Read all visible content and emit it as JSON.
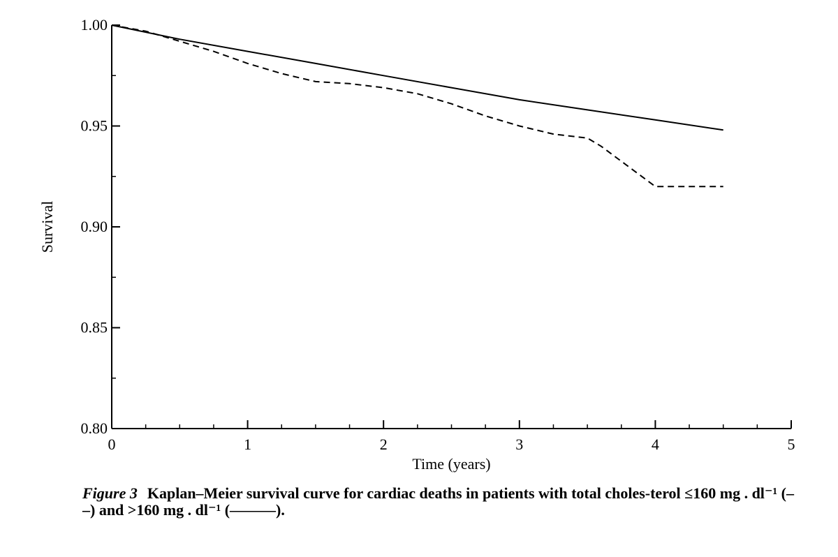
{
  "chart_data": {
    "type": "line",
    "title": "",
    "xlabel": "Time (years)",
    "ylabel": "Survival",
    "xlim": [
      0,
      5
    ],
    "ylim": [
      0.8,
      1.0
    ],
    "x_ticks": [
      0,
      1,
      2,
      3,
      4,
      5
    ],
    "x_tick_labels": [
      "0",
      "1",
      "2",
      "3",
      "4",
      "5"
    ],
    "x_minor_step": 0.25,
    "y_ticks": [
      0.8,
      0.85,
      0.9,
      0.95,
      1.0
    ],
    "y_tick_labels": [
      "0.80",
      "0.85",
      "0.90",
      "0.95",
      "1.00"
    ],
    "grid": false,
    "series": [
      {
        "name": "total cholesterol ≤160 mg . dl−1",
        "style": "dashed",
        "x": [
          0,
          0.25,
          0.5,
          0.75,
          1.0,
          1.25,
          1.5,
          1.75,
          2.0,
          2.25,
          2.5,
          2.75,
          3.0,
          3.25,
          3.5,
          3.6,
          3.8,
          4.0,
          4.25,
          4.5
        ],
        "y": [
          1.0,
          0.997,
          0.992,
          0.987,
          0.981,
          0.976,
          0.972,
          0.971,
          0.969,
          0.966,
          0.961,
          0.955,
          0.95,
          0.946,
          0.944,
          0.94,
          0.93,
          0.92,
          0.92,
          0.92
        ]
      },
      {
        "name": "total cholesterol >160 mg . dl−1",
        "style": "solid",
        "x": [
          0,
          0.5,
          1.0,
          1.5,
          2.0,
          2.5,
          3.0,
          3.5,
          4.0,
          4.5
        ],
        "y": [
          1.0,
          0.993,
          0.987,
          0.981,
          0.975,
          0.969,
          0.963,
          0.958,
          0.953,
          0.948
        ]
      }
    ]
  },
  "caption": {
    "label": "Figure 3",
    "text": "Kaplan–Meier survival curve for cardiac deaths in patients with total choles-terol ≤160 mg . dl⁻¹ (– –) and >160 mg . dl⁻¹ (———)."
  }
}
